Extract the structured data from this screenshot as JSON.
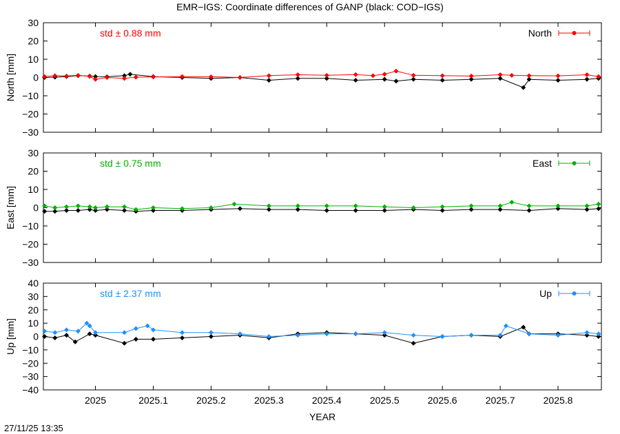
{
  "title": "EMR−IGS: Coordinate differences of GANP (black: COD−IGS)",
  "timestamp": "27/11/25 13:35",
  "chart_data": [
    {
      "type": "scatter",
      "panel": "north",
      "ylabel": "North [mm]",
      "xlabel": "",
      "xlim": [
        2024.91,
        2025.875
      ],
      "ylim": [
        -30,
        30
      ],
      "yticks": [
        -30,
        -20,
        -10,
        0,
        10,
        20,
        30
      ],
      "ytick_labels": [
        "−30",
        "−20",
        "−10",
        "0",
        "10",
        "20",
        "30"
      ],
      "std_label": "std ± 0.88 mm",
      "legend": "North",
      "legend_position": "top-right",
      "colors": {
        "emr": "#ff0000",
        "cod": "#000000"
      },
      "series": [
        {
          "name": "North",
          "x": [
            2024.912,
            2024.93,
            2024.95,
            2024.97,
            2024.99,
            2025.0,
            2025.02,
            2025.05,
            2025.07,
            2025.1,
            2025.15,
            2025.2,
            2025.25,
            2025.3,
            2025.35,
            2025.4,
            2025.45,
            2025.48,
            2025.5,
            2025.52,
            2025.55,
            2025.6,
            2025.65,
            2025.7,
            2025.72,
            2025.75,
            2025.8,
            2025.85,
            2025.87
          ],
          "y": [
            0.5,
            1.0,
            0.8,
            1.2,
            0.6,
            -1.0,
            0.0,
            -0.5,
            0.2,
            0.3,
            0.5,
            0.4,
            0.0,
            1.0,
            1.5,
            1.2,
            1.6,
            1.0,
            1.8,
            3.5,
            1.2,
            1.0,
            0.8,
            1.5,
            1.2,
            1.0,
            0.9,
            1.5,
            0.5
          ]
        },
        {
          "name": "COD−IGS",
          "x": [
            2024.912,
            2024.93,
            2024.95,
            2024.97,
            2024.99,
            2025.0,
            2025.02,
            2025.05,
            2025.06,
            2025.1,
            2025.15,
            2025.2,
            2025.25,
            2025.3,
            2025.35,
            2025.4,
            2025.45,
            2025.5,
            2025.52,
            2025.55,
            2025.6,
            2025.65,
            2025.7,
            2025.74,
            2025.75,
            2025.8,
            2025.85,
            2025.87
          ],
          "y": [
            0.0,
            0.2,
            0.5,
            1.0,
            0.8,
            0.5,
            0.4,
            1.0,
            1.8,
            0.5,
            0.0,
            -0.5,
            0.0,
            -1.5,
            -0.5,
            -0.5,
            -1.5,
            -1.0,
            -2.0,
            -1.0,
            -1.5,
            -1.0,
            -0.5,
            -5.5,
            -1.0,
            -1.5,
            -1.0,
            -0.5
          ]
        }
      ]
    },
    {
      "type": "scatter",
      "panel": "east",
      "ylabel": "East [mm]",
      "xlabel": "",
      "xlim": [
        2024.91,
        2025.875
      ],
      "ylim": [
        -30,
        30
      ],
      "yticks": [
        -30,
        -20,
        -10,
        0,
        10,
        20,
        30
      ],
      "ytick_labels": [
        "−30",
        "−20",
        "−10",
        "0",
        "10",
        "20",
        "30"
      ],
      "std_label": "std ± 0.75 mm",
      "legend": "East",
      "legend_position": "top-right",
      "colors": {
        "emr": "#00b000",
        "cod": "#000000"
      },
      "series": [
        {
          "name": "East",
          "x": [
            2024.912,
            2024.93,
            2024.95,
            2024.97,
            2024.99,
            2025.0,
            2025.02,
            2025.05,
            2025.07,
            2025.1,
            2025.15,
            2025.2,
            2025.24,
            2025.3,
            2025.35,
            2025.4,
            2025.45,
            2025.5,
            2025.55,
            2025.6,
            2025.65,
            2025.7,
            2025.72,
            2025.75,
            2025.8,
            2025.85,
            2025.87
          ],
          "y": [
            1.0,
            0.0,
            0.5,
            1.0,
            0.5,
            0.0,
            0.5,
            0.5,
            -1.0,
            0.0,
            -0.5,
            0.0,
            2.0,
            1.0,
            1.0,
            1.0,
            1.0,
            0.5,
            0.0,
            0.5,
            1.0,
            1.0,
            3.0,
            1.0,
            1.0,
            1.0,
            2.0
          ]
        },
        {
          "name": "COD−IGS",
          "x": [
            2024.912,
            2024.93,
            2024.95,
            2024.97,
            2024.99,
            2025.0,
            2025.02,
            2025.05,
            2025.07,
            2025.1,
            2025.15,
            2025.2,
            2025.25,
            2025.3,
            2025.35,
            2025.4,
            2025.45,
            2025.5,
            2025.55,
            2025.6,
            2025.65,
            2025.7,
            2025.75,
            2025.8,
            2025.85,
            2025.87
          ],
          "y": [
            -2.0,
            -2.0,
            -1.5,
            -1.5,
            -1.0,
            -1.5,
            -1.0,
            -1.5,
            -2.0,
            -1.5,
            -1.5,
            -1.0,
            -0.5,
            -1.0,
            -1.0,
            -1.5,
            -1.5,
            -1.5,
            -1.0,
            -1.5,
            -1.0,
            -1.0,
            -1.5,
            -0.5,
            -1.0,
            -0.5
          ]
        }
      ]
    },
    {
      "type": "scatter",
      "panel": "up",
      "ylabel": "Up [mm]",
      "xlabel": "YEAR",
      "xlim": [
        2024.91,
        2025.875
      ],
      "ylim": [
        -40,
        40
      ],
      "yticks": [
        -40,
        -30,
        -20,
        -10,
        0,
        10,
        20,
        30,
        40
      ],
      "ytick_labels": [
        "−40",
        "−30",
        "−20",
        "−10",
        "0",
        "10",
        "20",
        "30",
        "40"
      ],
      "xticks": [
        2025,
        2025.1,
        2025.2,
        2025.3,
        2025.4,
        2025.5,
        2025.6,
        2025.7,
        2025.8
      ],
      "xtick_labels": [
        "2025",
        "2025.1",
        "2025.2",
        "2025.3",
        "2025.4",
        "2025.5",
        "2025.6",
        "2025.7",
        "2025.8"
      ],
      "std_label": "std ± 2.37 mm",
      "legend": "Up",
      "legend_position": "top-right",
      "colors": {
        "emr": "#1e90ff",
        "cod": "#000000"
      },
      "series": [
        {
          "name": "Up",
          "x": [
            2024.912,
            2024.93,
            2024.95,
            2024.97,
            2024.985,
            2024.99,
            2025.0,
            2025.05,
            2025.07,
            2025.09,
            2025.1,
            2025.15,
            2025.2,
            2025.25,
            2025.3,
            2025.35,
            2025.4,
            2025.45,
            2025.5,
            2025.55,
            2025.6,
            2025.65,
            2025.7,
            2025.71,
            2025.75,
            2025.8,
            2025.85,
            2025.87
          ],
          "y": [
            4.0,
            3.0,
            5.0,
            4.0,
            10.0,
            8.0,
            3.0,
            3.0,
            6.0,
            8.0,
            5.0,
            3.0,
            3.0,
            2.0,
            0.0,
            1.0,
            2.0,
            2.0,
            3.0,
            1.0,
            0.0,
            1.0,
            1.0,
            8.0,
            2.0,
            1.0,
            3.0,
            2.0
          ]
        },
        {
          "name": "COD−IGS",
          "x": [
            2024.912,
            2024.93,
            2024.95,
            2024.965,
            2024.99,
            2025.0,
            2025.05,
            2025.07,
            2025.1,
            2025.15,
            2025.2,
            2025.25,
            2025.3,
            2025.35,
            2025.4,
            2025.45,
            2025.5,
            2025.55,
            2025.6,
            2025.65,
            2025.7,
            2025.74,
            2025.75,
            2025.8,
            2025.85,
            2025.87
          ],
          "y": [
            0.0,
            -1.0,
            1.0,
            -4.0,
            2.0,
            1.0,
            -5.0,
            -2.0,
            -2.0,
            -1.0,
            0.0,
            1.0,
            -1.0,
            2.0,
            3.0,
            2.0,
            1.0,
            -5.0,
            0.0,
            1.0,
            0.0,
            7.0,
            2.0,
            2.0,
            1.0,
            0.0
          ]
        }
      ]
    }
  ]
}
